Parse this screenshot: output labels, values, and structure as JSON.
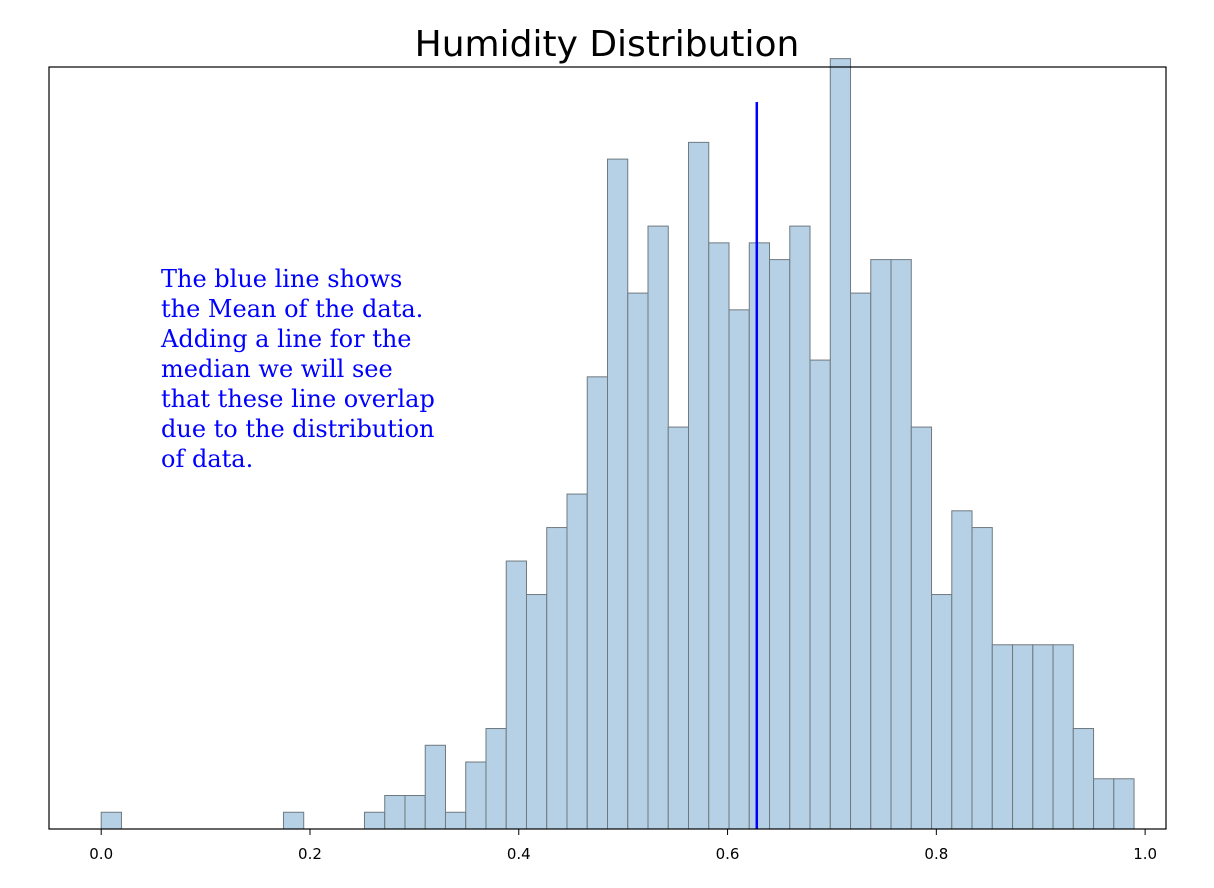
{
  "chart_data": {
    "type": "histogram",
    "title": "Humidity Distribution",
    "xlabel": "",
    "ylabel": "",
    "xlim": [
      -0.05,
      1.02
    ],
    "ylim": [
      0,
      45.5
    ],
    "xticks": [
      0.0,
      0.2,
      0.4,
      0.6,
      0.8,
      1.0
    ],
    "xtick_labels": [
      "0.0",
      "0.2",
      "0.4",
      "0.6",
      "0.8",
      "1.0"
    ],
    "yticks_visible": false,
    "bin_start": 0.0,
    "bin_width": 0.0194,
    "counts": [
      1,
      0,
      0,
      0,
      0,
      0,
      0,
      0,
      0,
      1,
      0,
      0,
      0,
      1,
      2,
      2,
      5,
      1,
      4,
      6,
      16,
      14,
      18,
      20,
      27,
      40,
      32,
      36,
      24,
      41,
      35,
      31,
      35,
      34,
      36,
      28,
      46,
      32,
      34,
      34,
      24,
      14,
      19,
      18,
      11,
      11,
      11,
      11,
      6,
      3,
      3
    ],
    "bar_color": "#b6d0e5",
    "edge_color": "#6f7a80",
    "mean_line": {
      "x": 0.628,
      "color": "#0000ff"
    },
    "annotation": {
      "color": "#0000ff",
      "lines": [
        "The blue line shows",
        "the Mean of the data.",
        "Adding a line for the",
        "median we will see",
        "that these line overlap",
        "due to the distribution",
        "of data."
      ]
    }
  }
}
